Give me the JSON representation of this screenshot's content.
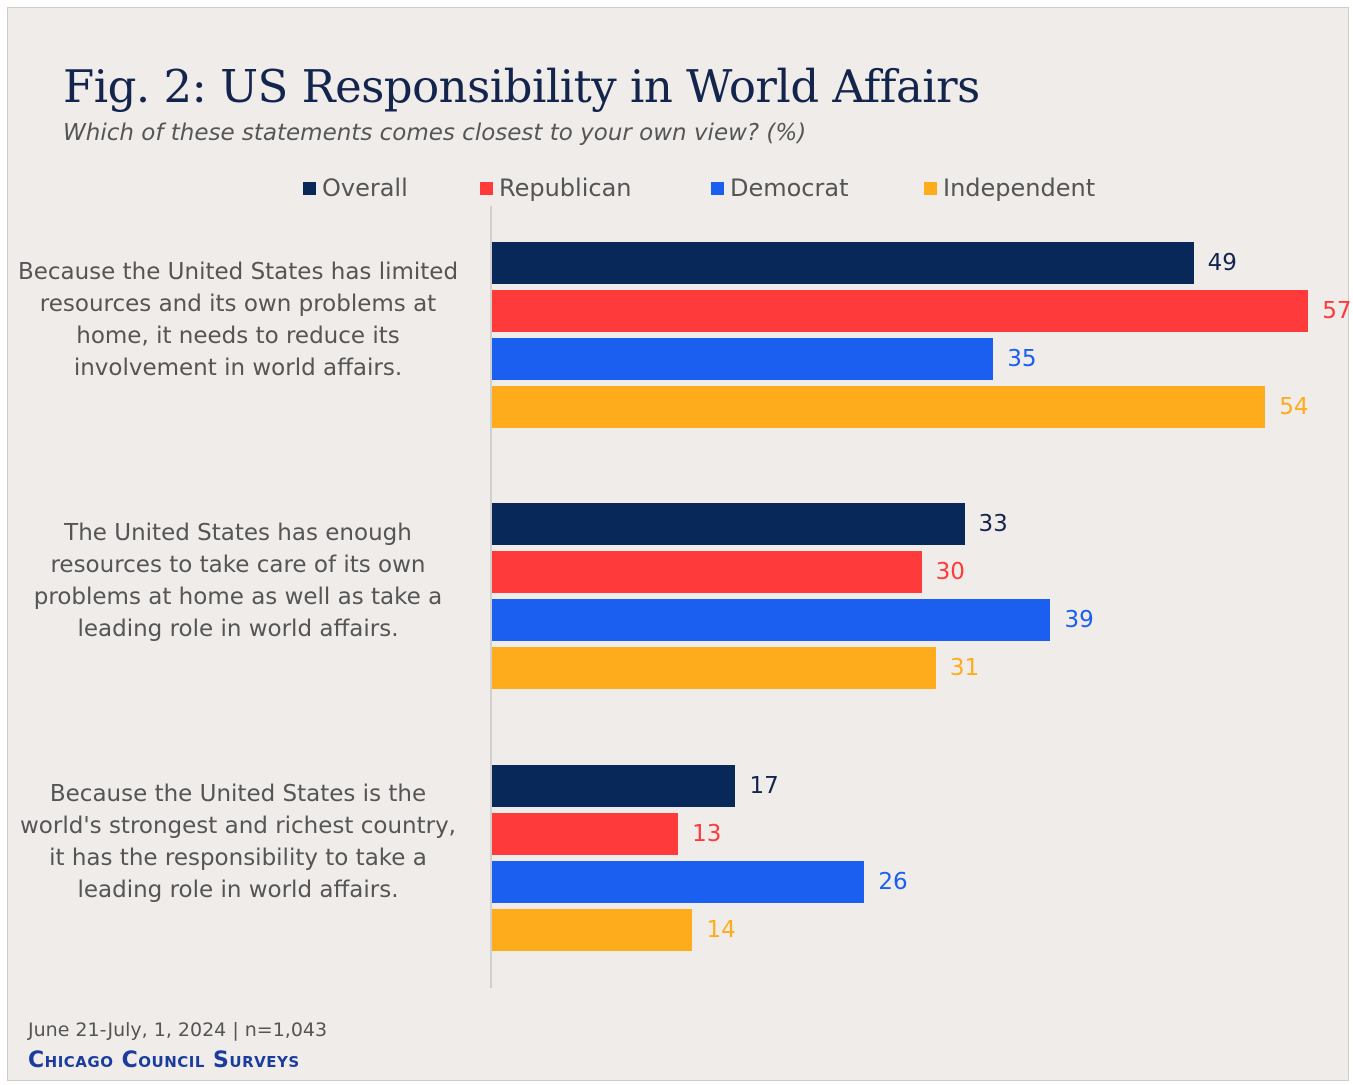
{
  "title": "Fig. 2: US Responsibility in World Affairs",
  "subtitle": "Which of these statements comes closest to your own view? (%)",
  "footer": {
    "date_sample": "June 21-July, 1, 2024 | n=1,043",
    "source": "Chicago Council Surveys"
  },
  "colors": {
    "Overall": "#08285a",
    "Republican": "#ff3a3a",
    "Democrat": "#1a5ff0",
    "Independent": "#ffac1c"
  },
  "chart_data": {
    "type": "bar",
    "orientation": "horizontal",
    "title": "Fig. 2: US Responsibility in World Affairs",
    "subtitle": "Which of these statements comes closest to your own view? (%)",
    "categories": [
      "Because the United States has limited resources and its own problems at home, it needs to reduce its involvement in world affairs.",
      "The United States has enough resources to take care of its own problems at home as well as take a leading role in world affairs.",
      "Because the United States is the world's strongest and richest country, it has the responsibility to take a leading role in world affairs."
    ],
    "series": [
      {
        "name": "Overall",
        "values": [
          49,
          33,
          17
        ]
      },
      {
        "name": "Republican",
        "values": [
          57,
          30,
          13
        ]
      },
      {
        "name": "Democrat",
        "values": [
          35,
          39,
          26
        ]
      },
      {
        "name": "Independent",
        "values": [
          54,
          31,
          14
        ]
      }
    ],
    "xlim": [
      0,
      57
    ],
    "grid": false,
    "legend_position": "top"
  }
}
